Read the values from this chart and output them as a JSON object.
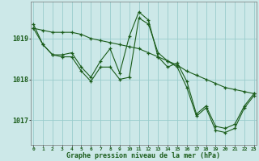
{
  "title": "Graphe pression niveau de la mer (hPa)",
  "bg_color": "#cce8e8",
  "grid_color": "#99cccc",
  "line_color": "#1a5c1a",
  "xlim": [
    -0.3,
    23.3
  ],
  "ylim": [
    1016.4,
    1019.9
  ],
  "yticks": [
    1017,
    1018,
    1019
  ],
  "xticks": [
    0,
    1,
    2,
    3,
    4,
    5,
    6,
    7,
    8,
    9,
    10,
    11,
    12,
    13,
    14,
    15,
    16,
    17,
    18,
    19,
    20,
    21,
    22,
    23
  ],
  "series": [
    [
      1019.35,
      1018.85,
      1018.6,
      1018.6,
      1018.65,
      1018.3,
      1018.05,
      1018.45,
      1018.75,
      1018.15,
      1019.05,
      1019.65,
      1019.45,
      1018.55,
      1018.3,
      1018.4,
      1017.95,
      1017.15,
      1017.35,
      1016.85,
      1016.8,
      1016.9,
      1017.35,
      1017.65
    ],
    [
      1019.25,
      1019.2,
      1019.15,
      1019.15,
      1019.15,
      1019.1,
      1019.0,
      1018.95,
      1018.9,
      1018.85,
      1018.8,
      1018.75,
      1018.65,
      1018.55,
      1018.45,
      1018.35,
      1018.2,
      1018.1,
      1018.0,
      1017.9,
      1017.8,
      1017.75,
      1017.7,
      1017.65
    ],
    [
      1019.25,
      1018.85,
      1018.6,
      1018.55,
      1018.55,
      1018.2,
      1017.95,
      1018.3,
      1018.3,
      1018.0,
      1018.05,
      1019.5,
      1019.35,
      1018.65,
      1018.45,
      1018.3,
      1017.8,
      1017.1,
      1017.3,
      1016.75,
      1016.7,
      1016.8,
      1017.3,
      1017.6
    ]
  ]
}
